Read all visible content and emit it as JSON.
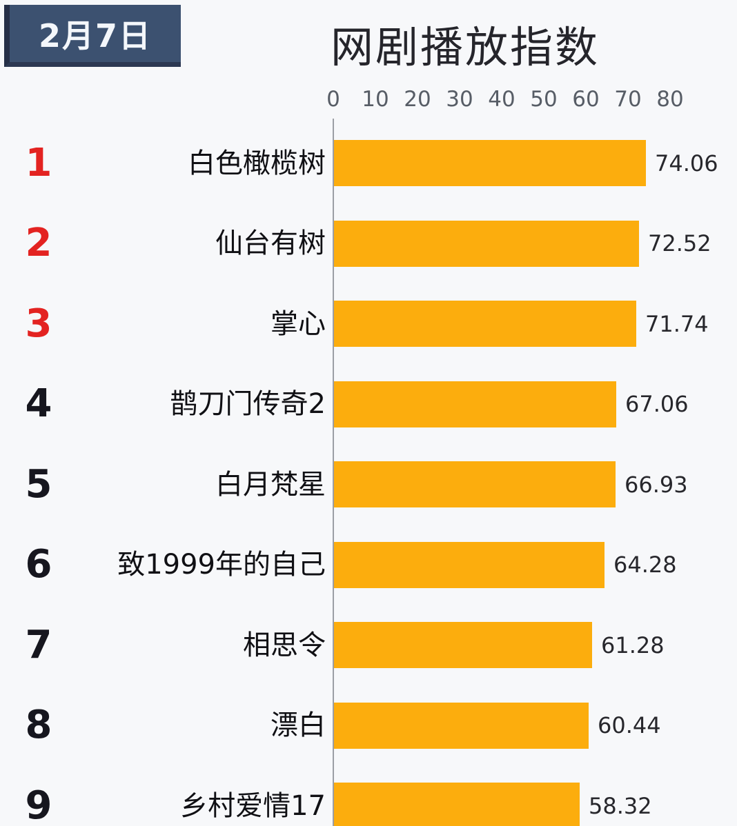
{
  "header": {
    "date_badge": "2月7日",
    "title": "网剧播放指数"
  },
  "colors": {
    "bar": "#fcad0d",
    "rank_top3": "#e32321",
    "rank_rest": "#16161e",
    "badge_bg": "#3c5170",
    "background": "#f7f8fa"
  },
  "chart_data": {
    "type": "bar",
    "orientation": "horizontal",
    "title": "网剧播放指数",
    "xlabel": "",
    "ylabel": "",
    "xlim": [
      0,
      80
    ],
    "x_ticks": [
      "0",
      "10",
      "20",
      "30",
      "40",
      "50",
      "60",
      "70",
      "80"
    ],
    "grid": false,
    "legend": "none",
    "rows": [
      {
        "rank": "1",
        "label": "白色橄榄树",
        "value": 74.06,
        "value_label": "74.06"
      },
      {
        "rank": "2",
        "label": "仙台有树",
        "value": 72.52,
        "value_label": "72.52"
      },
      {
        "rank": "3",
        "label": "掌心",
        "value": 71.74,
        "value_label": "71.74"
      },
      {
        "rank": "4",
        "label": "鹊刀门传奇2",
        "value": 67.06,
        "value_label": "67.06"
      },
      {
        "rank": "5",
        "label": "白月梵星",
        "value": 66.93,
        "value_label": "66.93"
      },
      {
        "rank": "6",
        "label": "致1999年的自己",
        "value": 64.28,
        "value_label": "64.28"
      },
      {
        "rank": "7",
        "label": "相思令",
        "value": 61.28,
        "value_label": "61.28"
      },
      {
        "rank": "8",
        "label": "漂白",
        "value": 60.44,
        "value_label": "60.44"
      },
      {
        "rank": "9",
        "label": "乡村爱情17",
        "value": 58.32,
        "value_label": "58.32"
      }
    ]
  }
}
